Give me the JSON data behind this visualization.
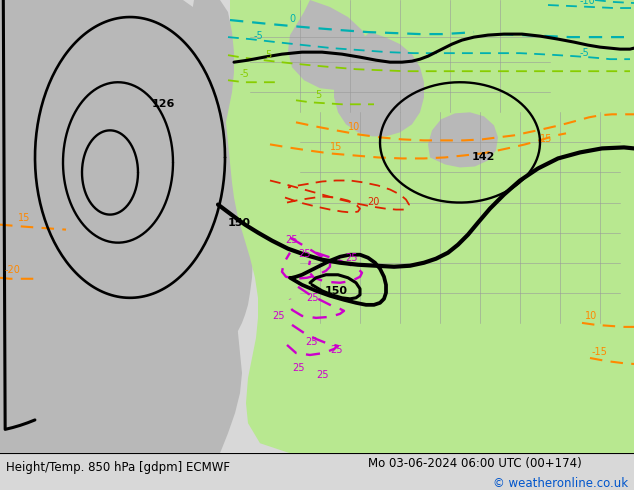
{
  "title_left": "Height/Temp. 850 hPa [gdpm] ECMWF",
  "title_right": "Mo 03-06-2024 06:00 UTC (00+174)",
  "copyright": "© weatheronline.co.uk",
  "bg_color": "#d8d8d8",
  "green_fill": "#b8e890",
  "land_gray": "#b8b8b8",
  "title_fontsize": 9,
  "copyright_color": "#0055cc",
  "bottom_bg": "#ffffff",
  "fig_width": 6.34,
  "fig_height": 4.9,
  "dpi": 100,
  "black_contour_lw": 2.2,
  "temp_lw": 1.3
}
